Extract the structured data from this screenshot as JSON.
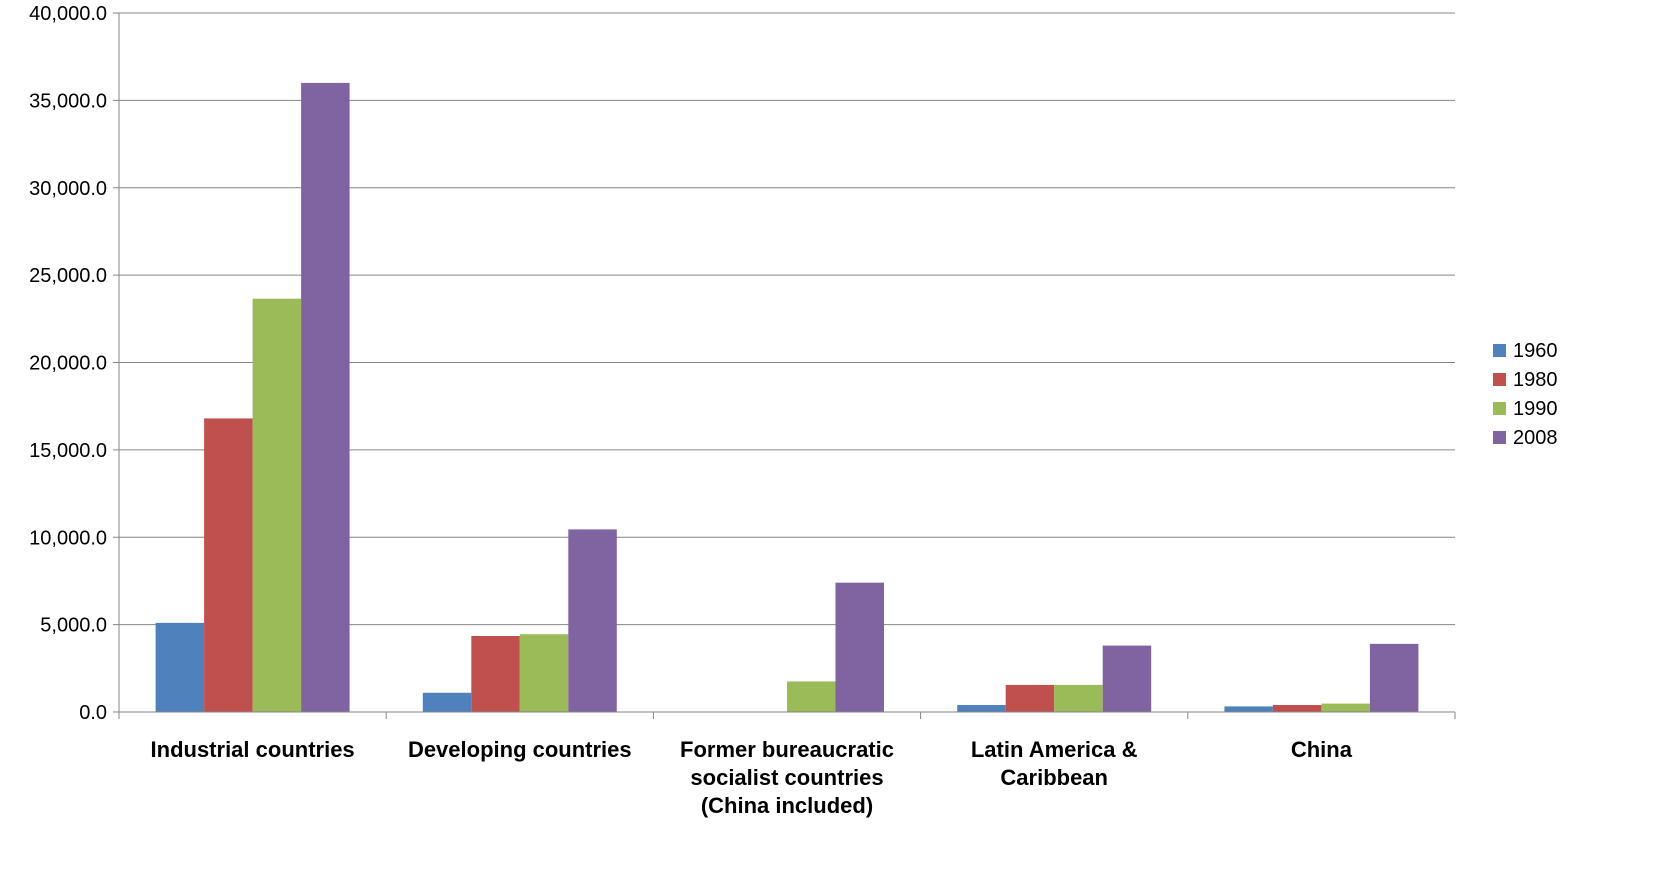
{
  "chart_data": {
    "type": "bar",
    "title": "",
    "xlabel": "",
    "ylabel": "",
    "ylim": [
      0,
      40000
    ],
    "yticks": [
      0,
      5000,
      10000,
      15000,
      20000,
      25000,
      30000,
      35000,
      40000
    ],
    "ytick_labels": [
      "0.0",
      "5,000.0",
      "10,000.0",
      "15,000.0",
      "20,000.0",
      "25,000.0",
      "30,000.0",
      "35,000.0",
      "40,000.0"
    ],
    "grid": true,
    "legend_position": "right",
    "categories": [
      [
        "Industrial countries"
      ],
      [
        "Developing countries"
      ],
      [
        "Former bureaucratic",
        "socialist countries",
        "(China included)"
      ],
      [
        "Latin America &",
        "Caribbean"
      ],
      [
        "China"
      ]
    ],
    "series": [
      {
        "name": "1960",
        "color": "#4f81bd",
        "values": [
          5100,
          1100,
          0,
          400,
          320
        ]
      },
      {
        "name": "1980",
        "color": "#c0504d",
        "values": [
          16800,
          4350,
          0,
          1550,
          400
        ]
      },
      {
        "name": "1990",
        "color": "#9bbb59",
        "values": [
          23650,
          4450,
          1750,
          1550,
          480
        ]
      },
      {
        "name": "2008",
        "color": "#8064a2",
        "values": [
          36000,
          10450,
          7400,
          3800,
          3900
        ]
      }
    ]
  }
}
